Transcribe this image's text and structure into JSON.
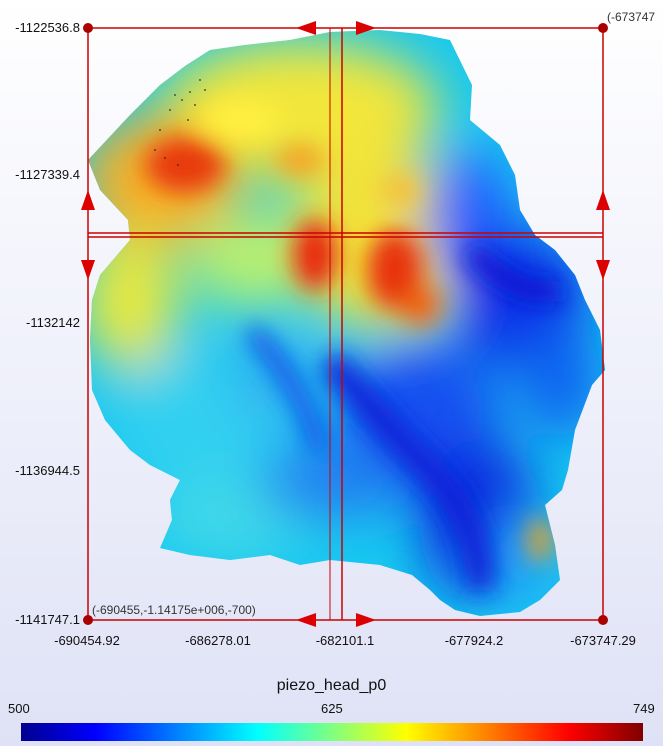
{
  "variable": "piezo_head_p0",
  "y_ticks": [
    "-1122536.8",
    "-1127339.4",
    "-1132142",
    "-1136944.5",
    "-1141747.1"
  ],
  "x_ticks": [
    "-690454.92",
    "-686278.01",
    "-682101.1",
    "-677924.2",
    "-673747.29"
  ],
  "corner_bottom_left": "(-690455,-1.14175e+006,-700)",
  "corner_top_right": "(-673747",
  "legend": {
    "min": "500",
    "mid": "625",
    "max": "749"
  },
  "colors": {
    "frame": "#cc0000",
    "handle": "#aa0000"
  }
}
